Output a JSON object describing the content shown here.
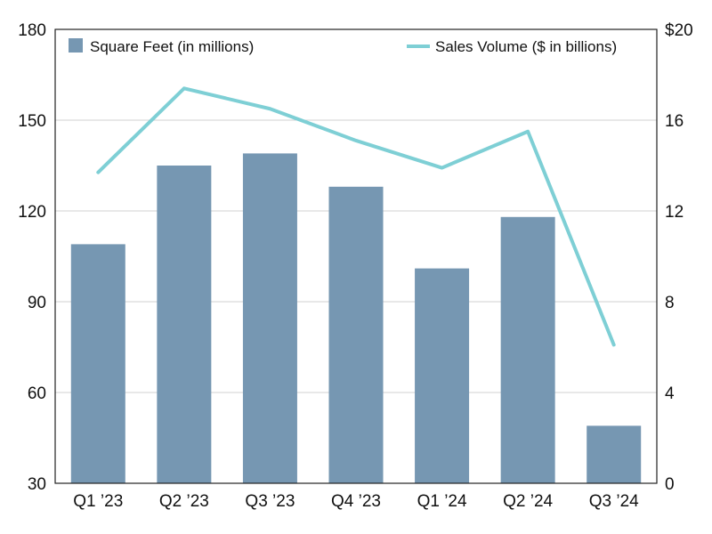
{
  "colors": {
    "bar": "#7697b2",
    "line": "#7ecfd5",
    "grid": "#d0d0d0",
    "frame": "#222222",
    "text": "#111111"
  },
  "legend": {
    "placement": "top",
    "bar_label": "Square Feet (in millions)",
    "line_label": "Sales Volume ($ in billions)"
  },
  "chart_data": {
    "type": "bar",
    "categories": [
      "Q1 ’23",
      "Q2 ’23",
      "Q3 ’23",
      "Q4 ’23",
      "Q1 ’24",
      "Q2 ’24",
      "Q3 ’24"
    ],
    "series": [
      {
        "name": "Square Feet (in millions)",
        "type": "bar",
        "axis": "left",
        "values": [
          109,
          135,
          139,
          128,
          101,
          118,
          49
        ]
      },
      {
        "name": "Sales Volume ($ in billions)",
        "type": "line",
        "axis": "right",
        "values": [
          13.7,
          17.4,
          16.5,
          15.1,
          13.9,
          15.5,
          6.1
        ]
      }
    ],
    "y_left": {
      "lim": [
        30,
        180
      ],
      "ticks": [
        30,
        60,
        90,
        120,
        150,
        180
      ],
      "tick_labels": [
        "30",
        "60",
        "90",
        "120",
        "150",
        "180"
      ]
    },
    "y_right": {
      "lim": [
        0,
        20
      ],
      "ticks": [
        0,
        4,
        8,
        12,
        16,
        20
      ],
      "tick_labels": [
        "0",
        "4",
        "8",
        "12",
        "16",
        "$20"
      ]
    },
    "grid": true
  }
}
